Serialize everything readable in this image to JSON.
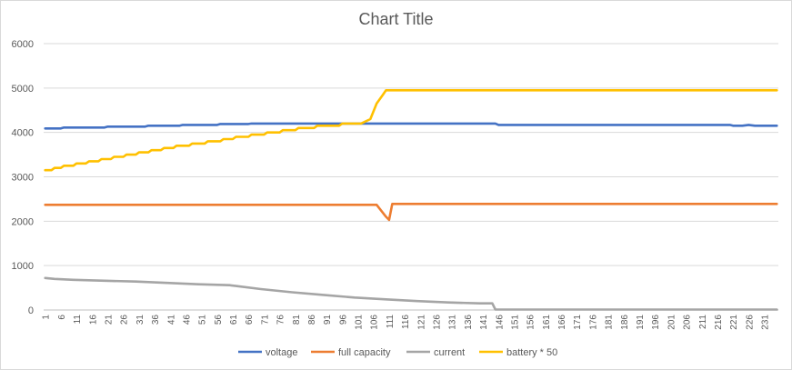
{
  "chart_data": {
    "type": "line",
    "title": "Chart Title",
    "xlabel": "",
    "ylabel": "",
    "ylim": [
      0,
      6000
    ],
    "y_ticks": [
      0,
      1000,
      2000,
      3000,
      4000,
      5000,
      6000
    ],
    "x_range": [
      1,
      235
    ],
    "x_ticks": [
      1,
      6,
      11,
      16,
      21,
      26,
      31,
      36,
      41,
      46,
      51,
      56,
      61,
      66,
      71,
      76,
      81,
      86,
      91,
      96,
      101,
      106,
      111,
      116,
      121,
      126,
      131,
      136,
      141,
      146,
      151,
      156,
      161,
      166,
      171,
      176,
      181,
      186,
      191,
      196,
      201,
      206,
      211,
      216,
      221,
      226,
      231
    ],
    "grid": "horizontal",
    "legend": "bottom",
    "series": [
      {
        "name": "voltage",
        "color": "#4472C4",
        "points": [
          [
            1,
            4090
          ],
          [
            6,
            4090
          ],
          [
            7,
            4110
          ],
          [
            20,
            4110
          ],
          [
            21,
            4130
          ],
          [
            33,
            4130
          ],
          [
            34,
            4150
          ],
          [
            44,
            4150
          ],
          [
            45,
            4170
          ],
          [
            56,
            4170
          ],
          [
            57,
            4190
          ],
          [
            66,
            4190
          ],
          [
            67,
            4200
          ],
          [
            145,
            4200
          ],
          [
            146,
            4170
          ],
          [
            220,
            4170
          ],
          [
            221,
            4150
          ],
          [
            224,
            4150
          ],
          [
            226,
            4170
          ],
          [
            228,
            4150
          ],
          [
            235,
            4150
          ]
        ]
      },
      {
        "name": "full capacity",
        "color": "#ED7D31",
        "points": [
          [
            1,
            2370
          ],
          [
            107,
            2370
          ],
          [
            110,
            2100
          ],
          [
            111,
            2030
          ],
          [
            112,
            2390
          ],
          [
            235,
            2390
          ]
        ]
      },
      {
        "name": "current",
        "color": "#A5A5A5",
        "points": [
          [
            1,
            720
          ],
          [
            4,
            700
          ],
          [
            10,
            680
          ],
          [
            20,
            660
          ],
          [
            30,
            640
          ],
          [
            40,
            610
          ],
          [
            50,
            580
          ],
          [
            60,
            560
          ],
          [
            62,
            540
          ],
          [
            70,
            470
          ],
          [
            80,
            400
          ],
          [
            90,
            340
          ],
          [
            100,
            280
          ],
          [
            110,
            240
          ],
          [
            120,
            200
          ],
          [
            130,
            170
          ],
          [
            140,
            150
          ],
          [
            144,
            150
          ],
          [
            145,
            10
          ],
          [
            235,
            10
          ]
        ]
      },
      {
        "name": "battery * 50",
        "color": "#FFC000",
        "points": [
          [
            1,
            3150
          ],
          [
            3,
            3150
          ],
          [
            4,
            3200
          ],
          [
            6,
            3200
          ],
          [
            7,
            3250
          ],
          [
            10,
            3250
          ],
          [
            11,
            3300
          ],
          [
            14,
            3300
          ],
          [
            15,
            3350
          ],
          [
            18,
            3350
          ],
          [
            19,
            3400
          ],
          [
            22,
            3400
          ],
          [
            23,
            3450
          ],
          [
            26,
            3450
          ],
          [
            27,
            3500
          ],
          [
            30,
            3500
          ],
          [
            31,
            3550
          ],
          [
            34,
            3550
          ],
          [
            35,
            3600
          ],
          [
            38,
            3600
          ],
          [
            39,
            3650
          ],
          [
            42,
            3650
          ],
          [
            43,
            3700
          ],
          [
            47,
            3700
          ],
          [
            48,
            3750
          ],
          [
            52,
            3750
          ],
          [
            53,
            3800
          ],
          [
            57,
            3800
          ],
          [
            58,
            3850
          ],
          [
            61,
            3850
          ],
          [
            62,
            3900
          ],
          [
            66,
            3900
          ],
          [
            67,
            3950
          ],
          [
            71,
            3950
          ],
          [
            72,
            4000
          ],
          [
            76,
            4000
          ],
          [
            77,
            4050
          ],
          [
            81,
            4050
          ],
          [
            82,
            4100
          ],
          [
            87,
            4100
          ],
          [
            88,
            4150
          ],
          [
            95,
            4150
          ],
          [
            96,
            4200
          ],
          [
            102,
            4200
          ],
          [
            105,
            4300
          ],
          [
            107,
            4650
          ],
          [
            109,
            4850
          ],
          [
            110,
            4950
          ],
          [
            235,
            4950
          ]
        ]
      }
    ]
  }
}
